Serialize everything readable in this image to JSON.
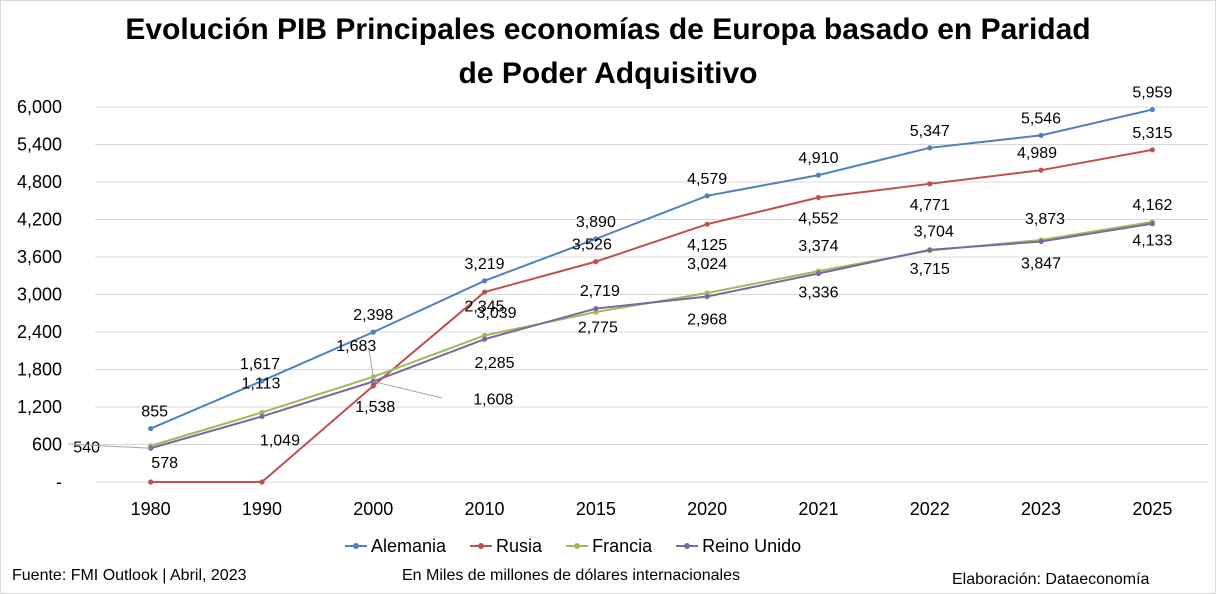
{
  "title_line1": "Evolución PIB Principales economías de Europa basado en Paridad",
  "title_line2": "de Poder Adquisitivo",
  "footer": {
    "source": "Fuente: FMI Outlook | Abril, 2023",
    "units": "En Miles de millones de dólares internacionales",
    "credit": "Elaboración: Dataeconomía"
  },
  "chart_data": {
    "type": "line",
    "categories": [
      "1980",
      "1990",
      "2000",
      "2010",
      "2015",
      "2020",
      "2021",
      "2022",
      "2023",
      "2025"
    ],
    "y_ticks": [
      "-",
      "600",
      "1,200",
      "1,800",
      "2,400",
      "3,000",
      "3,600",
      "4,200",
      "4,800",
      "5,400",
      "6,000"
    ],
    "ylim": [
      0,
      6000
    ],
    "grid": true,
    "legend_position": "bottom",
    "series": [
      {
        "name": "Alemania",
        "color": "#4f81bd",
        "values": [
          855,
          1617,
          2398,
          3219,
          3890,
          4579,
          4910,
          5347,
          5546,
          5959
        ],
        "labels": [
          "855",
          "1,617",
          "2,398",
          "3,219",
          "3,890",
          "4,579",
          "4,910",
          "5,347",
          "5,546",
          "5,959"
        ]
      },
      {
        "name": "Rusia",
        "color": "#c0504d",
        "values": [
          0,
          0,
          1538,
          3039,
          3526,
          4125,
          4552,
          4771,
          4989,
          5315
        ],
        "labels": [
          "",
          "",
          "1,538",
          "3,039",
          "3,526",
          "4,125",
          "4,552",
          "4,771",
          "4,989",
          "5,315"
        ]
      },
      {
        "name": "Francia",
        "color": "#9bbb59",
        "values": [
          578,
          1113,
          1683,
          2345,
          2719,
          3024,
          3374,
          3704,
          3873,
          4162
        ],
        "labels": [
          "578",
          "1,113",
          "1,683",
          "2,345",
          "2,719",
          "3,024",
          "3,374",
          "3,704",
          "3,873",
          "4,162"
        ]
      },
      {
        "name": "Reino Unido",
        "color": "#8064a2",
        "values": [
          540,
          1049,
          1608,
          2285,
          2775,
          2968,
          3336,
          3715,
          3847,
          4133
        ],
        "labels": [
          "540",
          "1,049",
          "1,608",
          "2,285",
          "2,775",
          "2,968",
          "3,336",
          "3,715",
          "3,847",
          "4,133"
        ]
      }
    ]
  }
}
